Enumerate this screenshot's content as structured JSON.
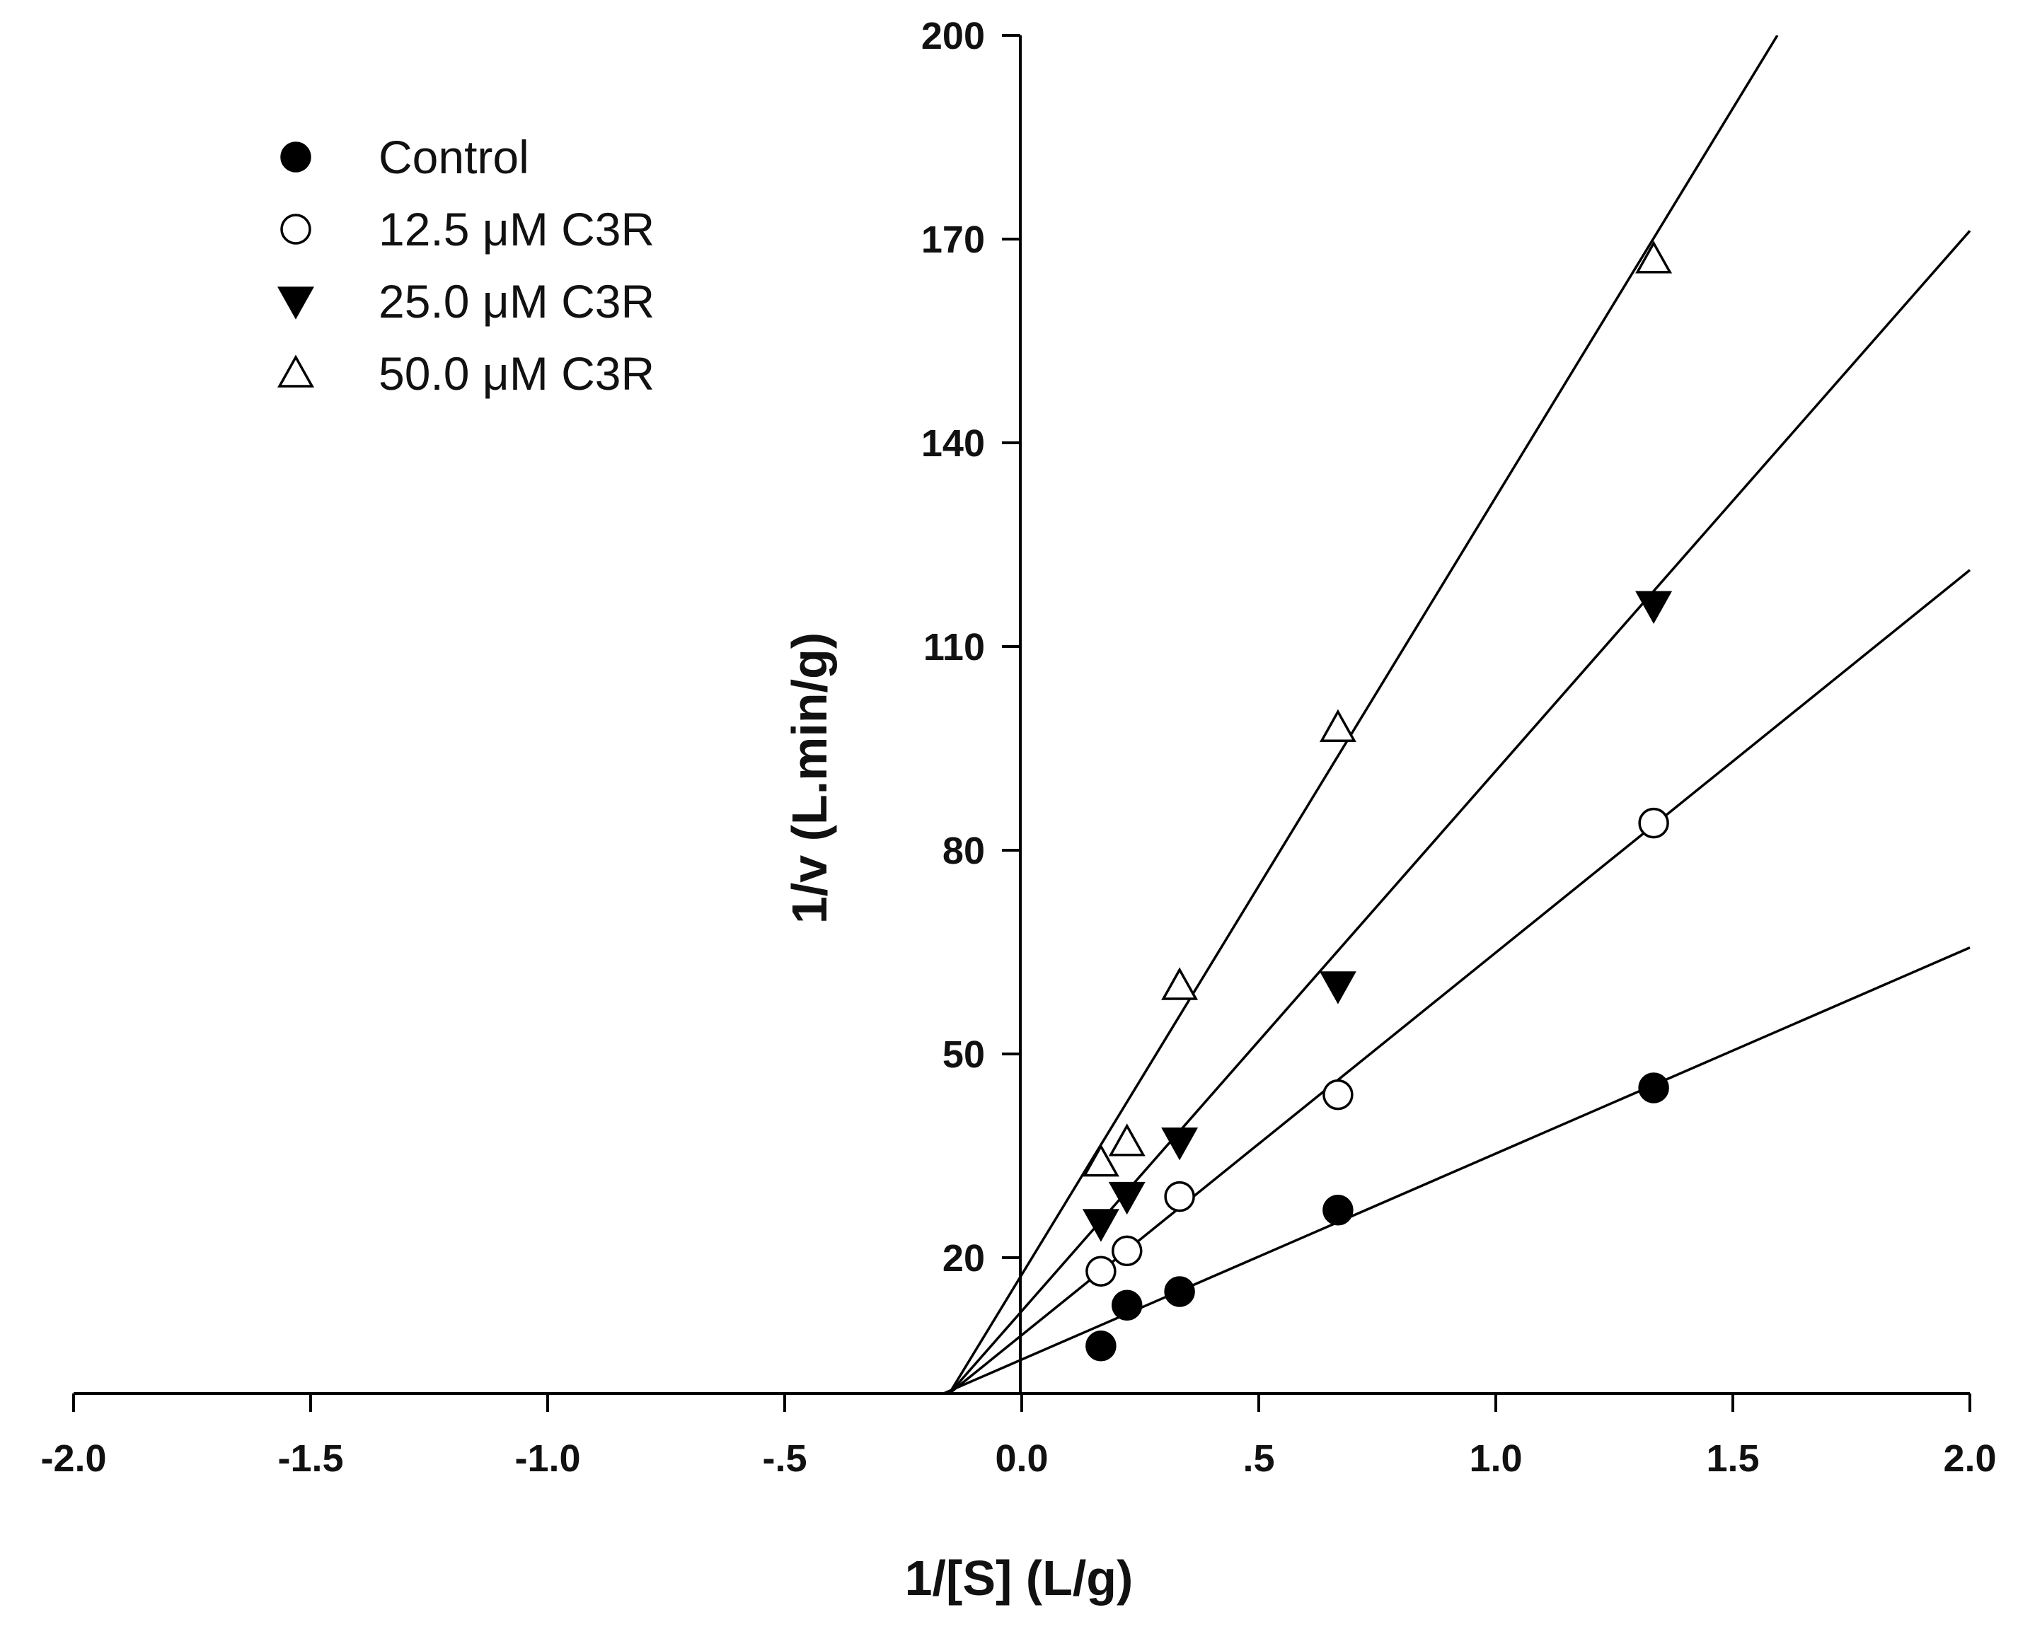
{
  "chart_data": {
    "type": "scatter",
    "title": "",
    "xlabel": "1/[S] (L/g)",
    "ylabel": "1/v (L.min/g)",
    "xlim": [
      -2.0,
      2.0
    ],
    "ylim": [
      0,
      200
    ],
    "x_ticks": [
      -2.0,
      -1.5,
      -1.0,
      -0.5,
      0.0,
      0.5,
      1.0,
      1.5,
      2.0
    ],
    "x_tick_labels": [
      "-2.0",
      "-1.5",
      "-1.0",
      "-.5",
      "0.0",
      ".5",
      "1.0",
      "1.5",
      "2.0"
    ],
    "y_ticks": [
      20,
      50,
      80,
      110,
      140,
      170,
      200
    ],
    "y_tick_labels": [
      "20",
      "50",
      "80",
      "110",
      "140",
      "170",
      "200"
    ],
    "grid": false,
    "legend_position": "top-left",
    "series": [
      {
        "name": "Control",
        "marker": "filled-circle",
        "x": [
          0.167,
          0.222,
          0.333,
          0.667,
          1.333
        ],
        "y": [
          7,
          13,
          15,
          27,
          45
        ],
        "fit": {
          "slope": 30.33,
          "intercept": 5.0
        }
      },
      {
        "name": "12.5 μM C3R",
        "marker": "open-circle",
        "x": [
          0.167,
          0.222,
          0.333,
          0.667,
          1.333
        ],
        "y": [
          18,
          21,
          29,
          44,
          84
        ],
        "fit": {
          "slope": 56.33,
          "intercept": 8.6
        }
      },
      {
        "name": "25.0 μM C3R",
        "marker": "filled-triangle-down",
        "x": [
          0.167,
          0.222,
          0.333,
          0.667,
          1.333
        ],
        "y": [
          25,
          29,
          37,
          60,
          116
        ],
        "fit": {
          "slope": 79.54,
          "intercept": 12.14
        }
      },
      {
        "name": "50.0 μM C3R",
        "marker": "open-triangle-up",
        "x": [
          0.167,
          0.222,
          0.333,
          0.667,
          1.333
        ],
        "y": [
          34,
          37,
          60,
          98,
          167
        ],
        "fit": {
          "slope": 114.5,
          "intercept": 17.5
        }
      }
    ]
  }
}
